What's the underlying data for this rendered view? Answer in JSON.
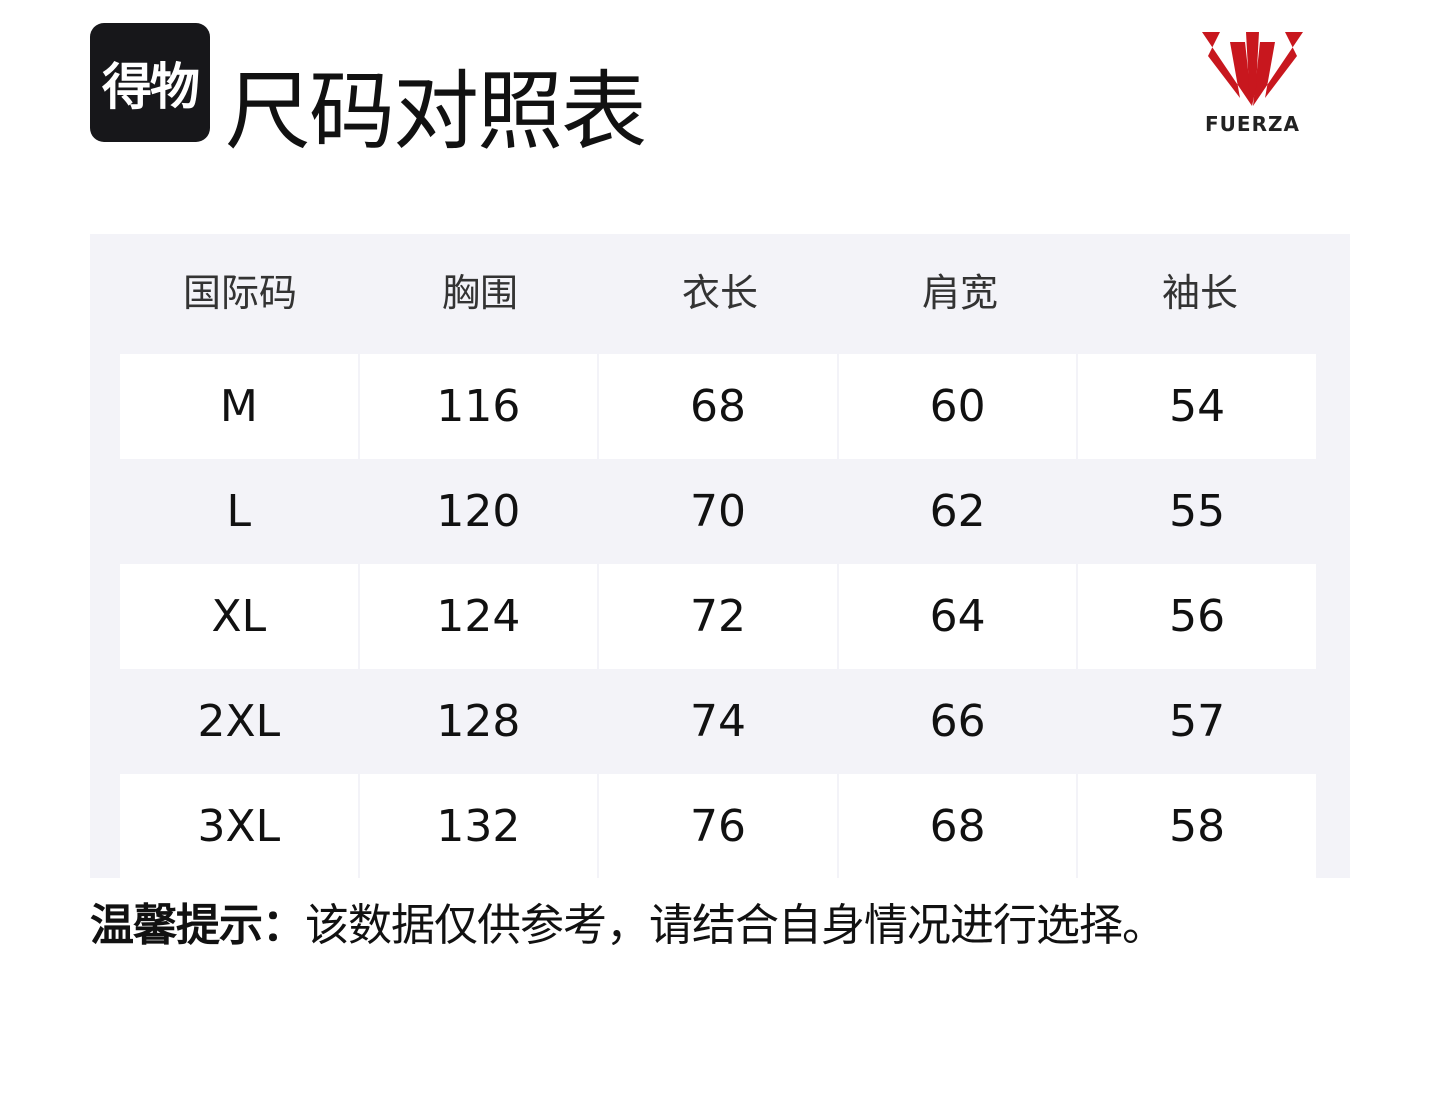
{
  "app_logo": "得物",
  "title": "尺码对照表",
  "brand": {
    "name": "FUERZA",
    "color": "#c8171e"
  },
  "table": {
    "headers": [
      "国际码",
      "胸围",
      "衣长",
      "肩宽",
      "袖长"
    ],
    "rows": [
      [
        "M",
        "116",
        "68",
        "60",
        "54"
      ],
      [
        "L",
        "120",
        "70",
        "62",
        "55"
      ],
      [
        "XL",
        "124",
        "72",
        "64",
        "56"
      ],
      [
        "2XL",
        "128",
        "74",
        "66",
        "57"
      ],
      [
        "3XL",
        "132",
        "76",
        "68",
        "58"
      ]
    ]
  },
  "tip": {
    "label": "温馨提示：",
    "text": "该数据仅供参考，请结合自身情况进行选择。"
  }
}
